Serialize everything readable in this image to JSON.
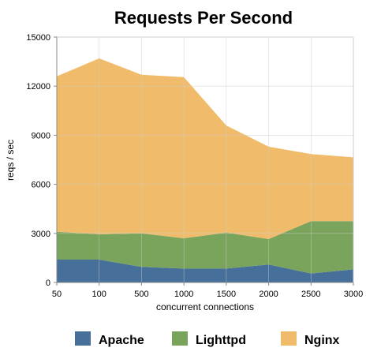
{
  "chart_data": {
    "type": "area",
    "stacked": true,
    "title": "Requests Per Second",
    "xlabel": "concurrent connections",
    "ylabel": "reqs / sec",
    "categories": [
      "50",
      "100",
      "500",
      "1000",
      "1500",
      "2000",
      "2500",
      "3000"
    ],
    "ylim": [
      0,
      15000
    ],
    "yticks": [
      "0",
      "3000",
      "6000",
      "9000",
      "12000",
      "15000"
    ],
    "grid": {
      "horizontal": true,
      "vertical": true
    },
    "legend": {
      "placement": "bottom"
    },
    "series": [
      {
        "name": "Apache",
        "color": "#466f99",
        "values": [
          1400,
          1400,
          950,
          850,
          850,
          1100,
          550,
          800
        ]
      },
      {
        "name": "Lighttpd",
        "color": "#7aa45b",
        "values": [
          1700,
          1550,
          2050,
          1850,
          2200,
          1550,
          3200,
          2950
        ]
      },
      {
        "name": "Nginx",
        "color": "#f0bc6c",
        "values": [
          9500,
          10750,
          9700,
          9850,
          6550,
          5650,
          4100,
          3900
        ]
      }
    ]
  }
}
